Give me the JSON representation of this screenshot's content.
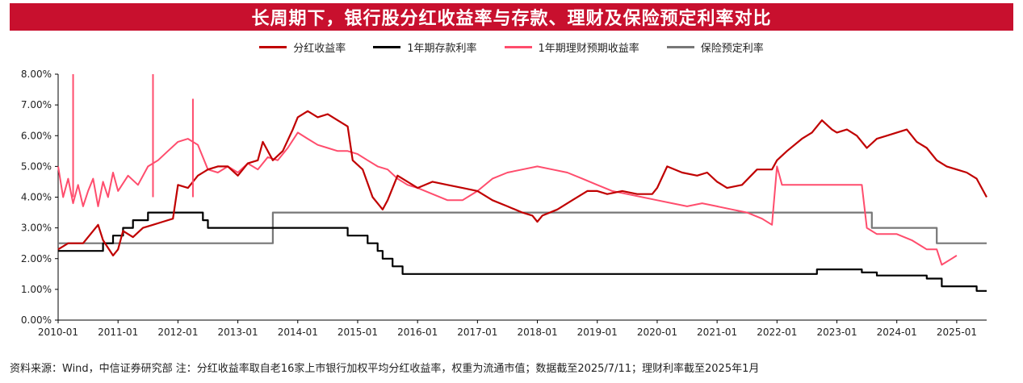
{
  "chart_data": {
    "type": "line",
    "title": "长周期下，银行股分红收益率与存款、理财及保险预定利率对比",
    "legend_position": "top",
    "grid": false,
    "xlabel": "",
    "ylabel": "",
    "x_ticks": [
      "2010-01",
      "2011-01",
      "2012-01",
      "2013-01",
      "2014-01",
      "2015-01",
      "2016-01",
      "2017-01",
      "2018-01",
      "2019-01",
      "2020-01",
      "2021-01",
      "2022-01",
      "2023-01",
      "2024-01",
      "2025-01"
    ],
    "y_ticks": [
      "0.00%",
      "1.00%",
      "2.00%",
      "3.00%",
      "4.00%",
      "5.00%",
      "6.00%",
      "7.00%",
      "8.00%"
    ],
    "xlim": [
      "2010-01",
      "2025-07"
    ],
    "ylim": [
      0,
      8
    ],
    "series": [
      {
        "name": "分红收益率",
        "color": "#c00000",
        "points": [
          [
            "2010-01",
            2.3
          ],
          [
            "2010-03",
            2.5
          ],
          [
            "2010-06",
            2.5
          ],
          [
            "2010-08",
            2.9
          ],
          [
            "2010-09",
            3.1
          ],
          [
            "2010-10",
            2.6
          ],
          [
            "2010-12",
            2.1
          ],
          [
            "2011-01",
            2.3
          ],
          [
            "2011-02",
            2.9
          ],
          [
            "2011-04",
            2.7
          ],
          [
            "2011-06",
            3.0
          ],
          [
            "2011-08",
            3.1
          ],
          [
            "2011-10",
            3.2
          ],
          [
            "2011-12",
            3.3
          ],
          [
            "2012-01",
            4.4
          ],
          [
            "2012-03",
            4.3
          ],
          [
            "2012-05",
            4.7
          ],
          [
            "2012-07",
            4.9
          ],
          [
            "2012-09",
            5.0
          ],
          [
            "2012-11",
            5.0
          ],
          [
            "2013-01",
            4.7
          ],
          [
            "2013-03",
            5.1
          ],
          [
            "2013-05",
            5.2
          ],
          [
            "2013-06",
            5.8
          ],
          [
            "2013-08",
            5.2
          ],
          [
            "2013-10",
            5.5
          ],
          [
            "2013-12",
            6.2
          ],
          [
            "2014-01",
            6.6
          ],
          [
            "2014-03",
            6.8
          ],
          [
            "2014-05",
            6.6
          ],
          [
            "2014-07",
            6.7
          ],
          [
            "2014-09",
            6.5
          ],
          [
            "2014-11",
            6.3
          ],
          [
            "2014-12",
            5.2
          ],
          [
            "2015-02",
            4.9
          ],
          [
            "2015-04",
            4.0
          ],
          [
            "2015-06",
            3.6
          ],
          [
            "2015-07",
            3.9
          ],
          [
            "2015-09",
            4.7
          ],
          [
            "2015-11",
            4.5
          ],
          [
            "2016-01",
            4.3
          ],
          [
            "2016-04",
            4.5
          ],
          [
            "2016-07",
            4.4
          ],
          [
            "2016-10",
            4.3
          ],
          [
            "2017-01",
            4.2
          ],
          [
            "2017-04",
            3.9
          ],
          [
            "2017-07",
            3.7
          ],
          [
            "2017-10",
            3.5
          ],
          [
            "2017-12",
            3.4
          ],
          [
            "2018-01",
            3.2
          ],
          [
            "2018-02",
            3.4
          ],
          [
            "2018-05",
            3.6
          ],
          [
            "2018-08",
            3.9
          ],
          [
            "2018-11",
            4.2
          ],
          [
            "2019-01",
            4.2
          ],
          [
            "2019-03",
            4.1
          ],
          [
            "2019-06",
            4.2
          ],
          [
            "2019-09",
            4.1
          ],
          [
            "2019-12",
            4.1
          ],
          [
            "2020-01",
            4.3
          ],
          [
            "2020-03",
            5.0
          ],
          [
            "2020-06",
            4.8
          ],
          [
            "2020-09",
            4.7
          ],
          [
            "2020-11",
            4.8
          ],
          [
            "2021-01",
            4.5
          ],
          [
            "2021-03",
            4.3
          ],
          [
            "2021-06",
            4.4
          ],
          [
            "2021-09",
            4.9
          ],
          [
            "2021-12",
            4.9
          ],
          [
            "2022-01",
            5.2
          ],
          [
            "2022-03",
            5.5
          ],
          [
            "2022-06",
            5.9
          ],
          [
            "2022-08",
            6.1
          ],
          [
            "2022-10",
            6.5
          ],
          [
            "2022-12",
            6.2
          ],
          [
            "2023-01",
            6.1
          ],
          [
            "2023-03",
            6.2
          ],
          [
            "2023-05",
            6.0
          ],
          [
            "2023-07",
            5.6
          ],
          [
            "2023-09",
            5.9
          ],
          [
            "2023-11",
            6.0
          ],
          [
            "2024-01",
            6.1
          ],
          [
            "2024-03",
            6.2
          ],
          [
            "2024-05",
            5.8
          ],
          [
            "2024-07",
            5.6
          ],
          [
            "2024-09",
            5.2
          ],
          [
            "2024-11",
            5.0
          ],
          [
            "2025-01",
            4.9
          ],
          [
            "2025-03",
            4.8
          ],
          [
            "2025-05",
            4.6
          ],
          [
            "2025-07",
            4.0
          ]
        ]
      },
      {
        "name": "1年期存款利率",
        "color": "#000000",
        "points": [
          [
            "2010-01",
            2.25
          ],
          [
            "2010-10",
            2.5
          ],
          [
            "2010-12",
            2.75
          ],
          [
            "2011-02",
            3.0
          ],
          [
            "2011-04",
            3.25
          ],
          [
            "2011-07",
            3.5
          ],
          [
            "2012-06",
            3.25
          ],
          [
            "2012-07",
            3.0
          ],
          [
            "2014-11",
            2.75
          ],
          [
            "2015-03",
            2.5
          ],
          [
            "2015-05",
            2.25
          ],
          [
            "2015-06",
            2.0
          ],
          [
            "2015-08",
            1.75
          ],
          [
            "2015-10",
            1.5
          ],
          [
            "2022-09",
            1.65
          ],
          [
            "2023-06",
            1.55
          ],
          [
            "2023-09",
            1.45
          ],
          [
            "2024-07",
            1.35
          ],
          [
            "2024-10",
            1.1
          ],
          [
            "2025-05",
            0.95
          ],
          [
            "2025-07",
            0.95
          ]
        ]
      },
      {
        "name": "1年期理财预期收益率",
        "color": "#ff4d6d",
        "points": [
          [
            "2010-01",
            5.0
          ],
          [
            "2010-02",
            4.0
          ],
          [
            "2010-03",
            4.6
          ],
          [
            "2010-04",
            3.8
          ],
          [
            "2010-05",
            4.4
          ],
          [
            "2010-06",
            3.7
          ],
          [
            "2010-07",
            4.2
          ],
          [
            "2010-08",
            4.6
          ],
          [
            "2010-09",
            3.7
          ],
          [
            "2010-10",
            4.5
          ],
          [
            "2010-11",
            4.0
          ],
          [
            "2010-12",
            4.8
          ],
          [
            "2011-01",
            4.2
          ],
          [
            "2011-03",
            4.7
          ],
          [
            "2011-05",
            4.4
          ],
          [
            "2011-07",
            5.0
          ],
          [
            "2011-09",
            5.2
          ],
          [
            "2011-11",
            5.5
          ],
          [
            "2012-01",
            5.8
          ],
          [
            "2012-03",
            5.9
          ],
          [
            "2012-05",
            5.7
          ],
          [
            "2012-07",
            4.9
          ],
          [
            "2012-09",
            4.8
          ],
          [
            "2012-11",
            5.0
          ],
          [
            "2013-01",
            4.8
          ],
          [
            "2013-03",
            5.1
          ],
          [
            "2013-05",
            4.9
          ],
          [
            "2013-07",
            5.3
          ],
          [
            "2013-09",
            5.2
          ],
          [
            "2013-11",
            5.6
          ],
          [
            "2014-01",
            6.1
          ],
          [
            "2014-03",
            5.9
          ],
          [
            "2014-05",
            5.7
          ],
          [
            "2014-07",
            5.6
          ],
          [
            "2014-09",
            5.5
          ],
          [
            "2014-11",
            5.5
          ],
          [
            "2015-01",
            5.4
          ],
          [
            "2015-03",
            5.2
          ],
          [
            "2015-05",
            5.0
          ],
          [
            "2015-07",
            4.9
          ],
          [
            "2015-09",
            4.6
          ],
          [
            "2015-11",
            4.4
          ],
          [
            "2016-01",
            4.3
          ],
          [
            "2016-04",
            4.1
          ],
          [
            "2016-07",
            3.9
          ],
          [
            "2016-10",
            3.9
          ],
          [
            "2017-01",
            4.2
          ],
          [
            "2017-04",
            4.6
          ],
          [
            "2017-07",
            4.8
          ],
          [
            "2017-10",
            4.9
          ],
          [
            "2018-01",
            5.0
          ],
          [
            "2018-04",
            4.9
          ],
          [
            "2018-07",
            4.8
          ],
          [
            "2018-10",
            4.6
          ],
          [
            "2019-01",
            4.4
          ],
          [
            "2019-04",
            4.2
          ],
          [
            "2019-07",
            4.1
          ],
          [
            "2019-10",
            4.0
          ],
          [
            "2020-01",
            3.9
          ],
          [
            "2020-04",
            3.8
          ],
          [
            "2020-07",
            3.7
          ],
          [
            "2020-10",
            3.8
          ],
          [
            "2021-01",
            3.7
          ],
          [
            "2021-04",
            3.6
          ],
          [
            "2021-07",
            3.5
          ],
          [
            "2021-10",
            3.3
          ],
          [
            "2021-12",
            3.1
          ],
          [
            "2022-01",
            5.0
          ],
          [
            "2022-02",
            4.4
          ],
          [
            "2022-06",
            4.4
          ],
          [
            "2022-12",
            4.4
          ],
          [
            "2023-06",
            4.4
          ],
          [
            "2023-07",
            3.0
          ],
          [
            "2023-09",
            2.8
          ],
          [
            "2024-01",
            2.8
          ],
          [
            "2024-04",
            2.6
          ],
          [
            "2024-07",
            2.3
          ],
          [
            "2024-09",
            2.3
          ],
          [
            "2024-10",
            1.8
          ],
          [
            "2024-12",
            2.0
          ],
          [
            "2025-01",
            2.1
          ]
        ]
      },
      {
        "name": "保险预定利率",
        "color": "#777777",
        "points": [
          [
            "2010-01",
            2.5
          ],
          [
            "2013-08",
            2.5
          ],
          [
            "2013-08",
            3.5
          ],
          [
            "2023-08",
            3.5
          ],
          [
            "2023-08",
            3.0
          ],
          [
            "2024-09",
            3.0
          ],
          [
            "2024-09",
            2.5
          ],
          [
            "2025-07",
            2.5
          ]
        ]
      }
    ]
  },
  "spikes": [
    {
      "series": "1年期理财预期收益率",
      "date": "2010-04",
      "value": 8.0
    },
    {
      "series": "1年期理财预期收益率",
      "date": "2011-08",
      "value": 8.0
    },
    {
      "series": "1年期理财预期收益率",
      "date": "2012-04",
      "value": 7.2
    }
  ],
  "source_note": "资料来源：Wind，中信证券研究部 注：分红收益率取自老16家上市银行加权平均分红收益率，权重为流通市值；数据截至2025/7/11；理财利率截至2025年1月"
}
